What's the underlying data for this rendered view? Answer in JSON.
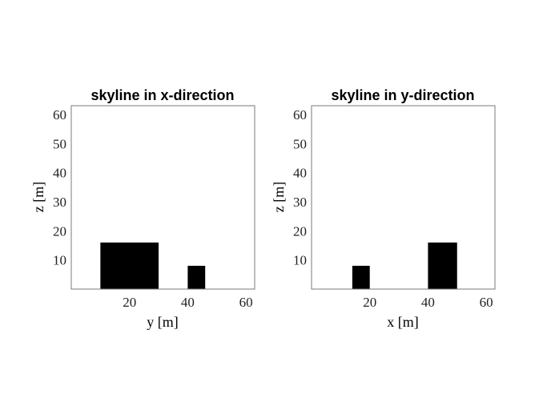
{
  "chart_data": [
    {
      "type": "bar",
      "title": "skyline in x-direction",
      "xlabel": "y [m]",
      "ylabel": "z [m]",
      "xlim": [
        0,
        63
      ],
      "ylim": [
        0,
        63
      ],
      "xticks": [
        20,
        40,
        60
      ],
      "yticks": [
        10,
        20,
        30,
        40,
        50,
        60
      ],
      "grid": false,
      "series": [
        {
          "values": [
            {
              "x0": 10,
              "x1": 30,
              "height": 16
            },
            {
              "x0": 40,
              "x1": 46,
              "height": 8
            }
          ]
        }
      ],
      "color": "#000000"
    },
    {
      "type": "bar",
      "title": "skyline in y-direction",
      "xlabel": "x [m]",
      "ylabel": "z [m]",
      "xlim": [
        0,
        63
      ],
      "ylim": [
        0,
        63
      ],
      "xticks": [
        20,
        40,
        60
      ],
      "yticks": [
        10,
        20,
        30,
        40,
        50,
        60
      ],
      "grid": false,
      "series": [
        {
          "values": [
            {
              "x0": 14,
              "x1": 20,
              "height": 8
            },
            {
              "x0": 40,
              "x1": 50,
              "height": 16
            }
          ]
        }
      ],
      "color": "#000000"
    }
  ]
}
